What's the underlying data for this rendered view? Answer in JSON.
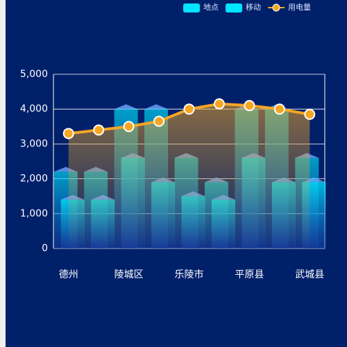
{
  "chart_data": {
    "type": "bar-line",
    "categories": [
      "德州",
      null,
      "陵城区",
      null,
      "乐陵市",
      null,
      "平原县",
      null,
      "武城县"
    ],
    "series": [
      {
        "name": "地点",
        "type": "bar",
        "color": "#00e5ff",
        "values": [
          2200,
          2200,
          4000,
          4000,
          2600,
          1900,
          4000,
          4000,
          2600
        ]
      },
      {
        "name": "移动",
        "type": "bar",
        "color": "#00e5ff",
        "values": [
          1400,
          1400,
          2600,
          1900,
          1500,
          1400,
          2600,
          1900,
          1900
        ]
      },
      {
        "name": "用电量",
        "type": "line",
        "color": "#f5a623",
        "values": [
          3300,
          3400,
          3500,
          3650,
          4000,
          4150,
          4100,
          4000,
          3850
        ]
      }
    ],
    "ylim": [
      0,
      5000
    ],
    "yticks": [
      0,
      {
        "value": 1000,
        "label": "1,000"
      },
      {
        "value": 2000,
        "label": "2,000"
      },
      {
        "value": 3000,
        "label": "3,000"
      },
      {
        "value": 4000,
        "label": "4,000"
      },
      {
        "value": 5000,
        "label": "5,000"
      }
    ],
    "grid": true,
    "legend": "top-right"
  }
}
